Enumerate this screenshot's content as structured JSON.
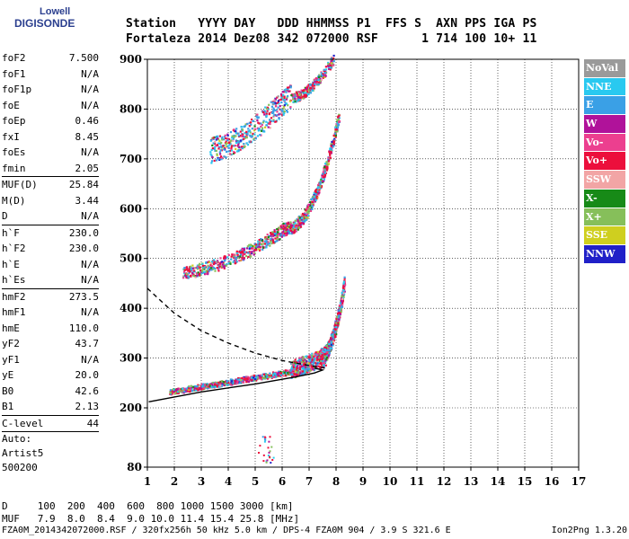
{
  "logo": {
    "line1": "Lowell",
    "line2": "DIGISONDE"
  },
  "header": {
    "labels": "Station   YYYY DAY   DDD HHMMSS P1  FFS S  AXN PPS IGA PS",
    "values": "Fortaleza 2014 Dez08 342 072000 RSF      1 714 100 10+ 11"
  },
  "params": [
    {
      "k": "foF2",
      "v": "7.500"
    },
    {
      "k": "foF1",
      "v": "N/A"
    },
    {
      "k": "foF1p",
      "v": "N/A"
    },
    {
      "k": "foE",
      "v": "N/A"
    },
    {
      "k": "foEp",
      "v": "0.46"
    },
    {
      "k": "fxI",
      "v": "8.45"
    },
    {
      "k": "foEs",
      "v": "N/A"
    },
    {
      "k": "fmin",
      "v": "2.05"
    },
    {
      "sep": true
    },
    {
      "k": "MUF(D)",
      "v": "25.84"
    },
    {
      "k": "M(D)",
      "v": "3.44"
    },
    {
      "k": "D",
      "v": "N/A"
    },
    {
      "sep": true
    },
    {
      "k": "h`F",
      "v": "230.0"
    },
    {
      "k": "h`F2",
      "v": "230.0"
    },
    {
      "k": "h`E",
      "v": "N/A"
    },
    {
      "k": "h`Es",
      "v": "N/A"
    },
    {
      "sep": true
    },
    {
      "k": "hmF2",
      "v": "273.5"
    },
    {
      "k": "hmF1",
      "v": "N/A"
    },
    {
      "k": "hmE",
      "v": "110.0"
    },
    {
      "k": "yF2",
      "v": "43.7"
    },
    {
      "k": "yF1",
      "v": "N/A"
    },
    {
      "k": "yE",
      "v": "20.0"
    },
    {
      "k": "B0",
      "v": "42.6"
    },
    {
      "k": "B1",
      "v": "2.13"
    },
    {
      "sep": true
    },
    {
      "k": "C-level",
      "v": "44"
    },
    {
      "sep": true
    },
    {
      "text": "Auto:"
    },
    {
      "text": "Artist5"
    },
    {
      "text": "500200"
    }
  ],
  "legend": [
    {
      "label": "NoVal",
      "color": "#9a9a9a"
    },
    {
      "label": "NNE",
      "color": "#29c9f0"
    },
    {
      "label": "E",
      "color": "#3aa0e6"
    },
    {
      "label": "W",
      "color": "#b0129a"
    },
    {
      "label": "Vo-",
      "color": "#ec3f8f"
    },
    {
      "label": "Vo+",
      "color": "#ec0f3c"
    },
    {
      "label": "SSW",
      "color": "#f2a5a5"
    },
    {
      "label": "X-",
      "color": "#178a17"
    },
    {
      "label": "X+",
      "color": "#86bf5a"
    },
    {
      "label": "SSE",
      "color": "#cfcf1f"
    },
    {
      "label": "NNW",
      "color": "#2020c8"
    }
  ],
  "footer": {
    "line1": "D     100  200  400  600  800 1000 1500 3000 [km]",
    "line2": "MUF   7.9  8.0  8.4  9.0 10.0 11.4 15.4 25.8 [MHz]",
    "file": "FZA0M_2014342072000.RSF / 320fx256h 50 kHz 5.0 km / DPS-4 FZA0M 904 / 3.9 S 321.6 E",
    "version": "Ion2Png 1.3.20"
  },
  "chart_data": {
    "type": "scatter",
    "x_ticks": [
      1,
      2,
      3,
      4,
      5,
      6,
      7,
      8,
      9,
      10,
      11,
      12,
      13,
      14,
      15,
      16,
      17
    ],
    "y_ticks": [
      80,
      200,
      300,
      400,
      500,
      600,
      700,
      800,
      900
    ],
    "xlim": [
      1,
      17
    ],
    "ylim": [
      80,
      900
    ],
    "grid": true,
    "legend_position": "right",
    "traces": [
      {
        "series": "E",
        "trace": "o-trace",
        "x_start": 1.8,
        "x_end": 7.1,
        "y_start": 232,
        "y_end": 292
      },
      {
        "series": "E",
        "trace": "o-trace steep",
        "x_start": 7.0,
        "x_end": 8.2,
        "y_start": 292,
        "y_end": 440
      },
      {
        "series": "E",
        "trace": "second hop",
        "x_start": 2.3,
        "x_end": 8.0,
        "y_start": 470,
        "y_end": 780
      },
      {
        "series": "E",
        "trace": "third hop",
        "x_start": 2.0,
        "x_end": 8.0,
        "y_start": 690,
        "y_end": 900
      }
    ],
    "lines": [
      {
        "name": "profile-solid",
        "style": "solid",
        "points": [
          [
            1.05,
            212
          ],
          [
            3.0,
            232
          ],
          [
            5.0,
            248
          ],
          [
            6.5,
            262
          ],
          [
            7.2,
            270
          ],
          [
            7.5,
            276
          ],
          [
            7.2,
            280
          ]
        ]
      },
      {
        "name": "mufs-dashed",
        "style": "dashed",
        "points": [
          [
            1.0,
            440
          ],
          [
            2.0,
            390
          ],
          [
            3.0,
            355
          ],
          [
            4.0,
            330
          ],
          [
            5.0,
            310
          ],
          [
            6.0,
            295
          ],
          [
            7.0,
            285
          ],
          [
            7.6,
            280
          ]
        ]
      }
    ]
  }
}
